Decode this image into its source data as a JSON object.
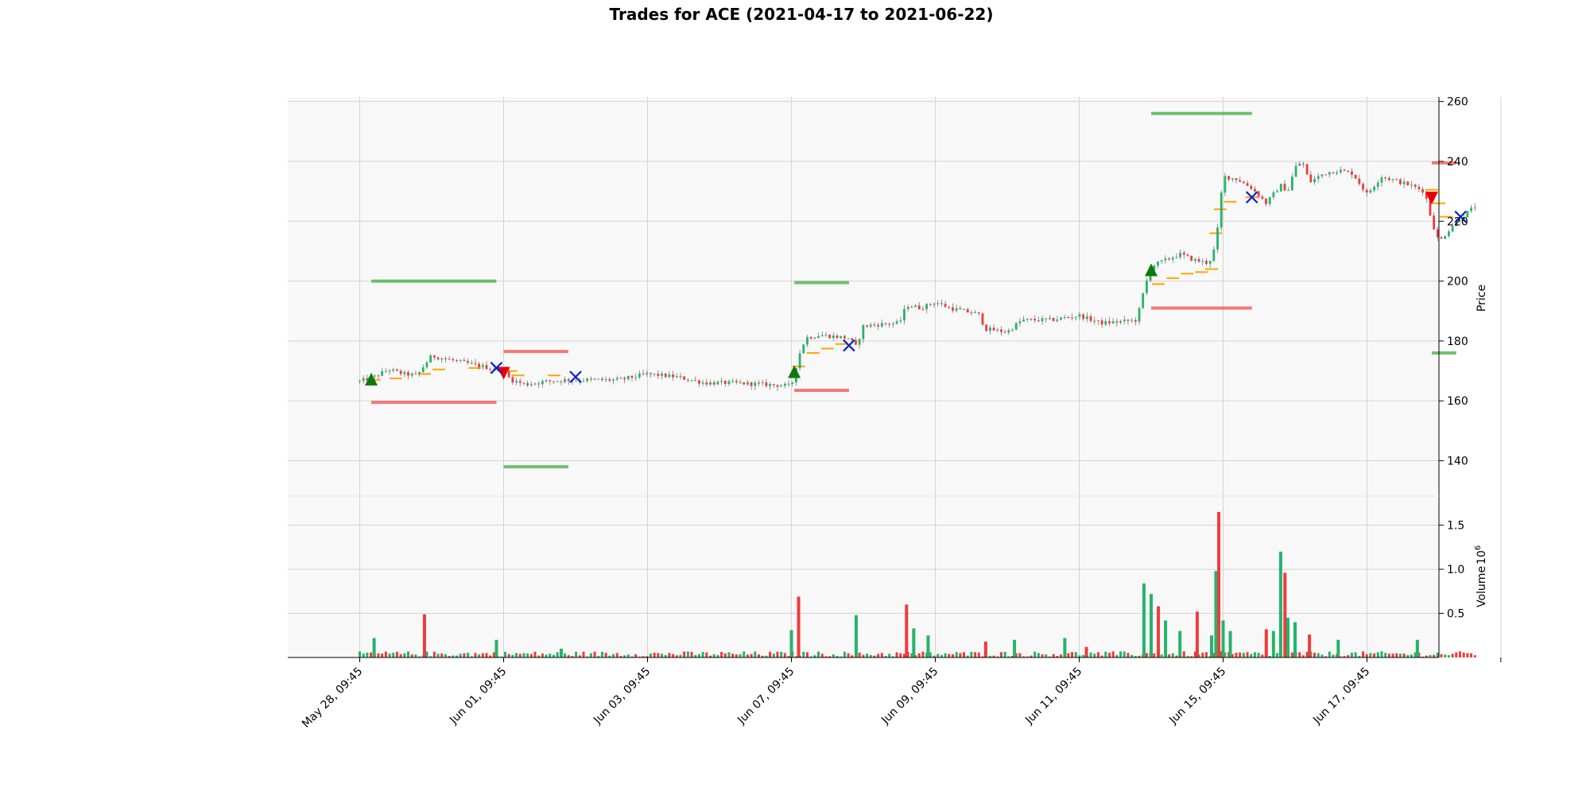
{
  "chart_data": {
    "type": "candlestick",
    "title": "Trades for ACE (2021-04-17 to 2021-06-22)",
    "x_tick_labels": [
      "May 28, 09:45",
      "Jun 01, 09:45",
      "Jun 03, 09:45",
      "Jun 07, 09:45",
      "Jun 09, 09:45",
      "Jun 11, 09:45",
      "Jun 15, 09:45",
      "Jun 17, 09:45"
    ],
    "x_tick_index": [
      0,
      1,
      2,
      3,
      4,
      5,
      6,
      7
    ],
    "x_range": [
      -0.5,
      7.5
    ],
    "price_panel": {
      "ylabel": "Price",
      "ylim": [
        128.2,
        261.5
      ],
      "yticks": [
        140,
        160,
        180,
        200,
        220,
        240,
        260
      ],
      "grid": true
    },
    "volume_panel": {
      "ylabel": "Volume",
      "ylabel_exponent": "6",
      "ylim": [
        0,
        1.83
      ],
      "yticks": [
        0.5,
        1.0,
        1.5
      ],
      "tick_labels": [
        "0.5",
        "1.0",
        "1.5"
      ],
      "grid": true
    },
    "price_path": [
      [
        0.0,
        166.5
      ],
      [
        0.1,
        168.0
      ],
      [
        0.2,
        170.5
      ],
      [
        0.3,
        169.0
      ],
      [
        0.4,
        168.5
      ],
      [
        0.45,
        172.0
      ],
      [
        0.5,
        175.0
      ],
      [
        0.6,
        174.0
      ],
      [
        0.7,
        173.0
      ],
      [
        0.8,
        172.0
      ],
      [
        0.9,
        171.0
      ],
      [
        1.0,
        170.0
      ],
      [
        1.05,
        167.0
      ],
      [
        1.15,
        165.5
      ],
      [
        1.3,
        166.5
      ],
      [
        1.45,
        167.0
      ],
      [
        1.55,
        167.0
      ],
      [
        1.8,
        167.0
      ],
      [
        2.0,
        169.0
      ],
      [
        2.2,
        168.0
      ],
      [
        2.4,
        166.0
      ],
      [
        2.6,
        166.0
      ],
      [
        2.8,
        165.5
      ],
      [
        3.0,
        165.0
      ],
      [
        3.02,
        169.0
      ],
      [
        3.05,
        175.0
      ],
      [
        3.1,
        181.0
      ],
      [
        3.2,
        182.0
      ],
      [
        3.4,
        181.0
      ],
      [
        3.45,
        178.0
      ],
      [
        3.5,
        185.0
      ],
      [
        3.6,
        185.5
      ],
      [
        3.75,
        186.0
      ],
      [
        3.8,
        192.0
      ],
      [
        3.9,
        191.0
      ],
      [
        4.0,
        193.0
      ],
      [
        4.1,
        191.0
      ],
      [
        4.2,
        190.0
      ],
      [
        4.3,
        189.0
      ],
      [
        4.35,
        184.0
      ],
      [
        4.5,
        183.0
      ],
      [
        4.6,
        187.0
      ],
      [
        4.8,
        187.0
      ],
      [
        5.0,
        188.5
      ],
      [
        5.15,
        186.0
      ],
      [
        5.3,
        186.5
      ],
      [
        5.4,
        187.0
      ],
      [
        5.45,
        197.0
      ],
      [
        5.5,
        205.0
      ],
      [
        5.6,
        207.0
      ],
      [
        5.7,
        209.0
      ],
      [
        5.8,
        207.0
      ],
      [
        5.9,
        206.0
      ],
      [
        5.95,
        212.0
      ],
      [
        6.0,
        235.0
      ],
      [
        6.1,
        234.0
      ],
      [
        6.2,
        231.0
      ],
      [
        6.3,
        226.0
      ],
      [
        6.4,
        232.0
      ],
      [
        6.45,
        230.0
      ],
      [
        6.5,
        238.0
      ],
      [
        6.55,
        240.0
      ],
      [
        6.6,
        233.0
      ],
      [
        6.7,
        236.0
      ],
      [
        6.8,
        237.0
      ],
      [
        6.9,
        236.0
      ],
      [
        7.0,
        229.0
      ],
      [
        7.1,
        235.0
      ],
      [
        7.3,
        232.0
      ],
      [
        7.4,
        230.0
      ],
      [
        7.45,
        220.0
      ],
      [
        7.5,
        213.0
      ],
      [
        7.6,
        219.0
      ],
      [
        7.75,
        225.0
      ]
    ],
    "volume_spikes": [
      [
        0.1,
        0.22
      ],
      [
        0.45,
        0.49
      ],
      [
        0.95,
        0.2
      ],
      [
        1.4,
        0.1
      ],
      [
        3.05,
        0.69
      ],
      [
        3.0,
        0.31
      ],
      [
        3.45,
        0.48
      ],
      [
        3.8,
        0.6
      ],
      [
        3.85,
        0.33
      ],
      [
        3.95,
        0.25
      ],
      [
        4.35,
        0.18
      ],
      [
        4.55,
        0.2
      ],
      [
        4.9,
        0.22
      ],
      [
        5.05,
        0.12
      ],
      [
        5.45,
        0.84
      ],
      [
        5.5,
        0.72
      ],
      [
        5.55,
        0.58
      ],
      [
        5.6,
        0.42
      ],
      [
        5.7,
        0.3
      ],
      [
        5.82,
        0.52
      ],
      [
        5.92,
        0.25
      ],
      [
        5.95,
        0.98
      ],
      [
        5.97,
        1.65
      ],
      [
        6.0,
        0.42
      ],
      [
        6.05,
        0.3
      ],
      [
        6.3,
        0.32
      ],
      [
        6.35,
        0.3
      ],
      [
        6.4,
        1.2
      ],
      [
        6.43,
        0.96
      ],
      [
        6.45,
        0.45
      ],
      [
        6.5,
        0.4
      ],
      [
        6.6,
        0.26
      ],
      [
        6.8,
        0.2
      ],
      [
        7.35,
        0.2
      ]
    ],
    "trade_markers": {
      "buy_triangles_up": [
        [
          0.08,
          167.0
        ],
        [
          3.02,
          169.5
        ],
        [
          5.5,
          203.5
        ]
      ],
      "sell_triangles_down": [
        [
          1.0,
          169.5
        ],
        [
          7.45,
          228.0
        ]
      ],
      "exits_x": [
        [
          0.95,
          171.0
        ],
        [
          1.5,
          168.0
        ],
        [
          3.4,
          178.5
        ],
        [
          6.2,
          228.0
        ],
        [
          7.65,
          221.5
        ]
      ]
    },
    "order_segments": [
      {
        "color": "green",
        "x0": 0.08,
        "x1": 0.95,
        "y": 200
      },
      {
        "color": "red",
        "x0": 0.08,
        "x1": 0.95,
        "y": 159.5
      },
      {
        "color": "red",
        "x0": 1.0,
        "x1": 1.45,
        "y": 176.5
      },
      {
        "color": "green",
        "x0": 1.0,
        "x1": 1.45,
        "y": 138.0
      },
      {
        "color": "green",
        "x0": 3.02,
        "x1": 3.4,
        "y": 199.5
      },
      {
        "color": "red",
        "x0": 3.02,
        "x1": 3.4,
        "y": 163.5
      },
      {
        "color": "green",
        "x0": 5.5,
        "x1": 6.2,
        "y": 256.0
      },
      {
        "color": "red",
        "x0": 5.5,
        "x1": 6.2,
        "y": 191.0
      },
      {
        "color": "red",
        "x0": 7.45,
        "x1": 7.62,
        "y": 239.5
      },
      {
        "color": "green",
        "x0": 7.45,
        "x1": 7.62,
        "y": 176.0
      }
    ],
    "colors": {
      "up": "#26b36b",
      "down": "#ef3b3b",
      "buy_marker": "#0b7a0b",
      "sell_marker": "#e60000",
      "exit_marker": "#0a21c9",
      "order_line": "#ffa500",
      "grid": "#d4d4d4",
      "panel_bg": "#f8f8f8"
    }
  }
}
